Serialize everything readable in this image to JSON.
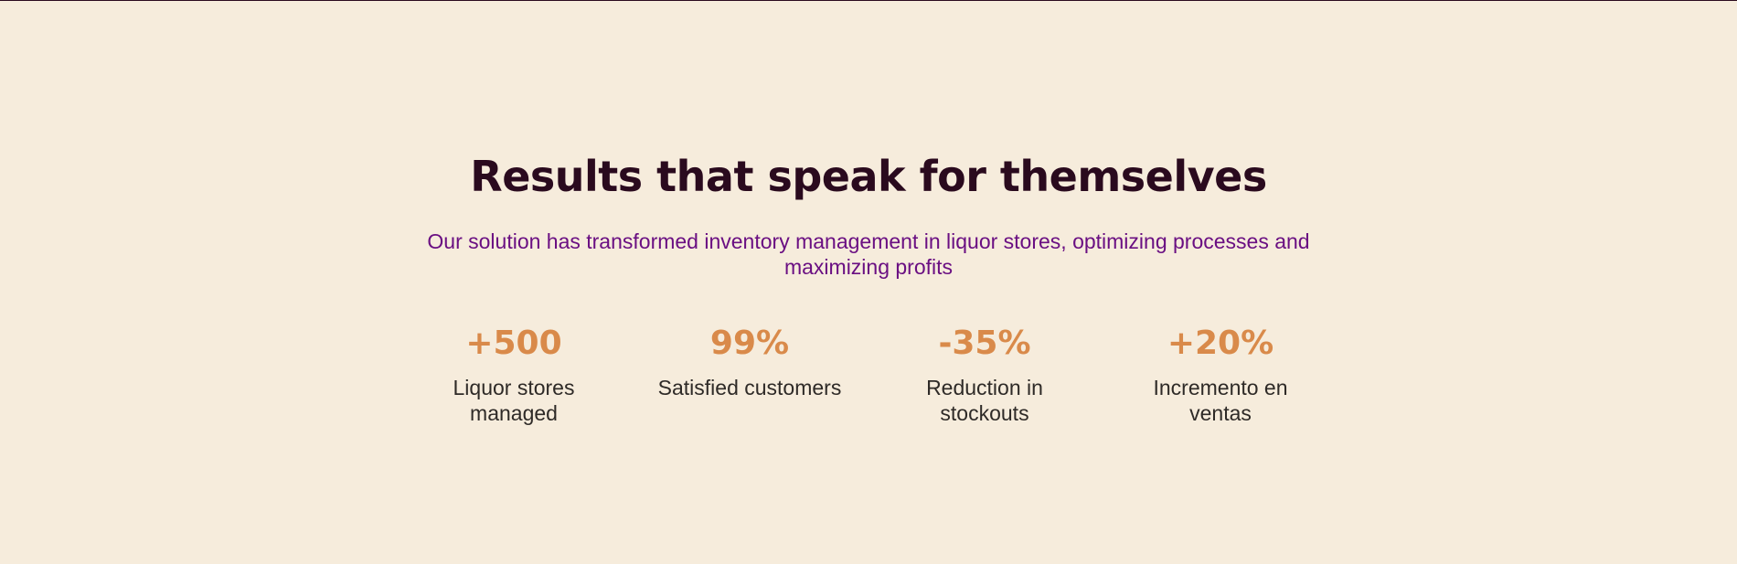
{
  "section": {
    "title": "Results that speak for themselves",
    "subtitle": "Our solution has transformed inventory management in liquor stores, optimizing processes and maximizing profits"
  },
  "stats": [
    {
      "value": "+500",
      "label": "Liquor stores managed"
    },
    {
      "value": "99%",
      "label": "Satisfied customers"
    },
    {
      "value": "-35%",
      "label": "Reduction in stockouts"
    },
    {
      "value": "+20%",
      "label": "Incremento en ventas"
    }
  ],
  "colors": {
    "background": "#f6ecdc",
    "title": "#2a0a1e",
    "subtitle": "#6a0f82",
    "stat_value": "#d98a4a",
    "stat_label": "#2e2a27"
  }
}
